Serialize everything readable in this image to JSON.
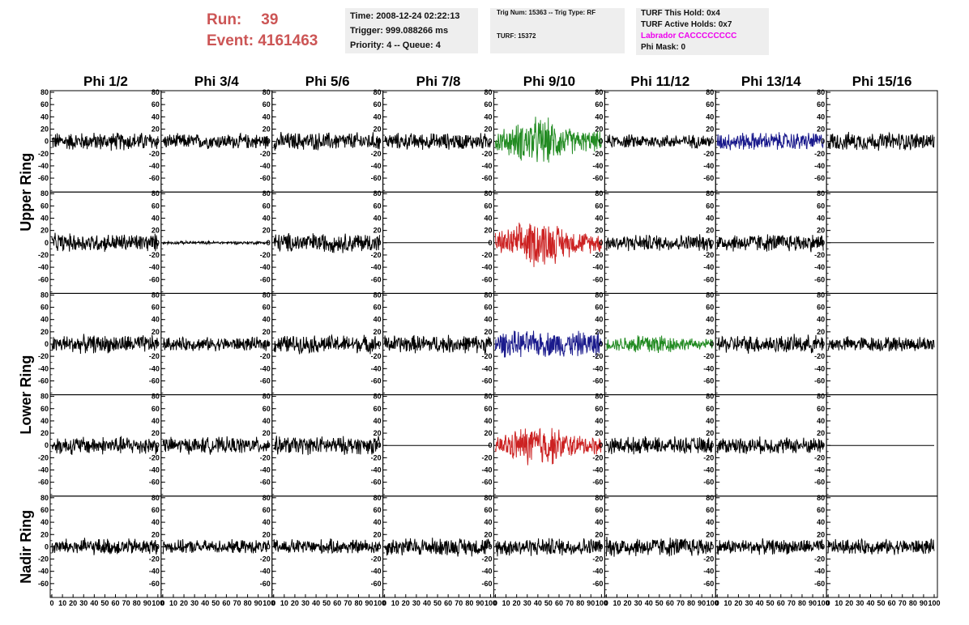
{
  "header": {
    "run_label": "Run:",
    "run_value": "39",
    "event_label": "Event:",
    "event_value": "4161463",
    "time": "Time: 2008-12-24 02:22:13",
    "trigger": "Trigger: 999.088266 ms",
    "priority": "Priority: 4 -- Queue: 4",
    "trig_num": "Trig Num: 15363 -- Trig Type: RF",
    "turf": "TURF: 15372",
    "turf_this_hold": "TURF This Hold: 0x4",
    "turf_active_holds": "TURF Active Holds: 0x7",
    "labrador": "Labrador CACCCCCCCC",
    "phi_mask": "Phi Mask: 0"
  },
  "colors": {
    "run_event": "#cc5555",
    "labrador": "#ee00ee",
    "trace_black": "#000000",
    "trace_green": "#228b22",
    "trace_blue": "#1a1a8c",
    "trace_red": "#cc2222",
    "info_box_bg": "#eeeeee"
  },
  "chart_data": {
    "type": "line",
    "description_free": true,
    "columns": [
      "Phi 1/2",
      "Phi 3/4",
      "Phi 5/6",
      "Phi 7/8",
      "Phi 9/10",
      "Phi 11/12",
      "Phi 13/14",
      "Phi 15/16"
    ],
    "ring_labels": [
      {
        "text": "Upper Ring",
        "rows": [
          0,
          1
        ]
      },
      {
        "text": "Lower Ring",
        "rows": [
          2,
          3
        ]
      },
      {
        "text": "Nadir Ring",
        "rows": [
          4,
          4
        ]
      }
    ],
    "ylim": [
      -80,
      80
    ],
    "yticks": [
      -60,
      -40,
      -20,
      0,
      20,
      40,
      60,
      80
    ],
    "xlim": [
      0,
      100
    ],
    "xticks": [
      0,
      10,
      20,
      30,
      40,
      50,
      60,
      70,
      80,
      90,
      100
    ],
    "xtick_labels": [
      "0",
      "10",
      "20",
      "30",
      "40",
      "50",
      "60",
      "70",
      "80",
      "90",
      "100"
    ],
    "traces": [
      [
        {
          "c": "k",
          "a": 12
        },
        {
          "c": "k",
          "a": 10
        },
        {
          "c": "k",
          "a": 12
        },
        {
          "c": "k",
          "a": 11
        },
        {
          "c": "g",
          "a": 24
        },
        {
          "c": "k",
          "a": 9
        },
        {
          "c": "b",
          "a": 12
        },
        {
          "c": "k",
          "a": 12
        }
      ],
      [
        {
          "c": "k",
          "a": 12
        },
        {
          "c": "k",
          "a": 2
        },
        {
          "c": "k",
          "a": 13
        },
        {
          "c": "k",
          "a": 0
        },
        {
          "c": "r",
          "a": 24
        },
        {
          "c": "k",
          "a": 11
        },
        {
          "c": "k",
          "a": 12
        },
        {
          "c": "k",
          "a": 0
        }
      ],
      [
        {
          "c": "k",
          "a": 12
        },
        {
          "c": "k",
          "a": 9
        },
        {
          "c": "k",
          "a": 12
        },
        {
          "c": "k",
          "a": 12
        },
        {
          "c": "b",
          "a": 17
        },
        {
          "c": "g",
          "a": 12
        },
        {
          "c": "k",
          "a": 12
        },
        {
          "c": "k",
          "a": 10
        }
      ],
      [
        {
          "c": "k",
          "a": 12
        },
        {
          "c": "k",
          "a": 11
        },
        {
          "c": "k",
          "a": 12
        },
        {
          "c": "k",
          "a": 0
        },
        {
          "c": "r",
          "a": 22
        },
        {
          "c": "k",
          "a": 11
        },
        {
          "c": "k",
          "a": 11
        },
        {
          "c": "k",
          "a": 0
        }
      ],
      [
        {
          "c": "k",
          "a": 11
        },
        {
          "c": "k",
          "a": 9
        },
        {
          "c": "k",
          "a": 10
        },
        {
          "c": "k",
          "a": 12
        },
        {
          "c": "k",
          "a": 12
        },
        {
          "c": "k",
          "a": 13
        },
        {
          "c": "k",
          "a": 10
        },
        {
          "c": "k",
          "a": 10
        }
      ]
    ]
  }
}
